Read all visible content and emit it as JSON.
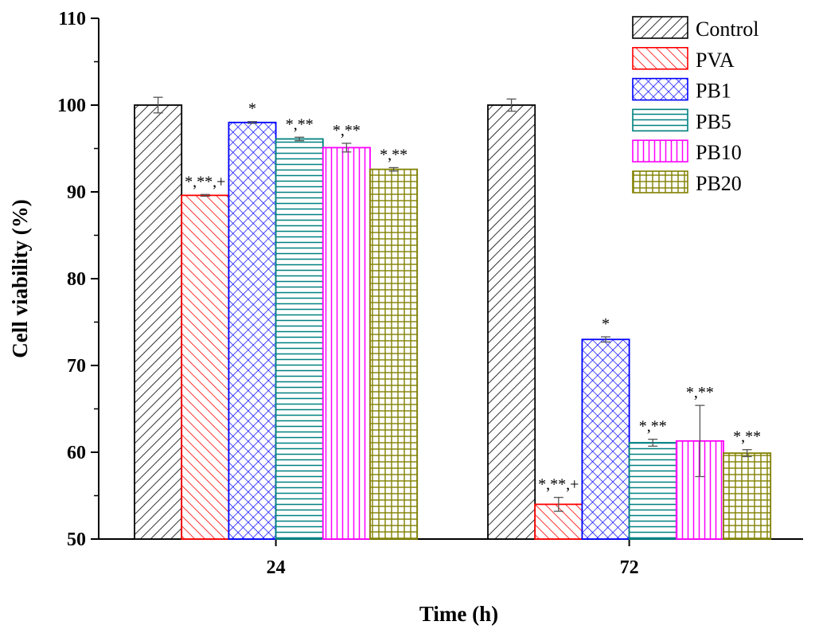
{
  "chart_data": {
    "type": "bar",
    "title": "",
    "xlabel": "Time (h)",
    "ylabel": "Cell viability (%)",
    "ylim": [
      50,
      110
    ],
    "yticks": [
      50,
      60,
      70,
      80,
      90,
      100,
      110
    ],
    "categories": [
      "24",
      "72"
    ],
    "legend_position": "top-right",
    "series": [
      {
        "name": "Control",
        "color": "#000000",
        "pattern": "diag-right",
        "values": [
          100,
          100
        ],
        "errors": [
          0.9,
          0.7
        ],
        "annotations": [
          "",
          ""
        ]
      },
      {
        "name": "PVA",
        "color": "#ff0000",
        "pattern": "diag-left",
        "values": [
          89.6,
          54.0
        ],
        "errors": [
          0.1,
          0.8
        ],
        "annotations": [
          "*,**,+",
          "*,**,+"
        ]
      },
      {
        "name": "PB1",
        "color": "#0000ff",
        "pattern": "crosshatch",
        "values": [
          98.0,
          73.0
        ],
        "errors": [
          0.1,
          0.3
        ],
        "annotations": [
          "*",
          "*"
        ]
      },
      {
        "name": "PB5",
        "color": "#008080",
        "pattern": "horizontal",
        "values": [
          96.1,
          61.1
        ],
        "errors": [
          0.2,
          0.4
        ],
        "annotations": [
          "*,**",
          "*,**"
        ]
      },
      {
        "name": "PB10",
        "color": "#ff00ff",
        "pattern": "vertical",
        "values": [
          95.1,
          61.3
        ],
        "errors": [
          0.5,
          4.1
        ],
        "annotations": [
          "*,**",
          "*,**"
        ]
      },
      {
        "name": "PB20",
        "color": "#808000",
        "pattern": "grid",
        "values": [
          92.6,
          59.9
        ],
        "errors": [
          0.2,
          0.4
        ],
        "annotations": [
          "*,**",
          "*,**"
        ]
      }
    ]
  }
}
